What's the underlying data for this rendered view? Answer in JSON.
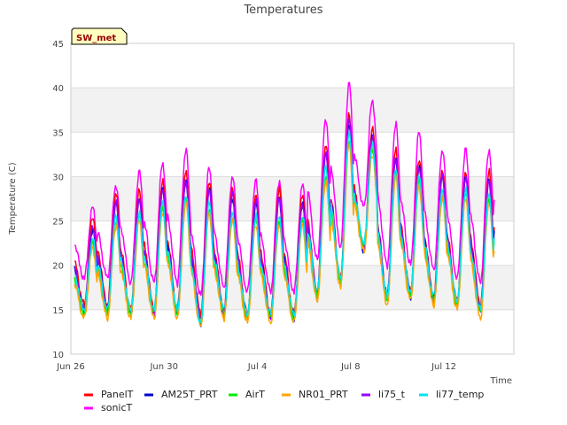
{
  "chart_data": {
    "type": "line",
    "title": "Temperatures",
    "xlabel": "Time",
    "ylabel": "Temperature (C)",
    "ylim": [
      10,
      45
    ],
    "xlim": [
      "2024-06-26",
      "2024-07-15"
    ],
    "x_ticks": [
      {
        "date": "2024-06-26",
        "label": "Jun 26"
      },
      {
        "date": "2024-06-30",
        "label": "Jun 30"
      },
      {
        "date": "2024-07-04",
        "label": "Jul 4"
      },
      {
        "date": "2024-07-08",
        "label": "Jul 8"
      },
      {
        "date": "2024-07-12",
        "label": "Jul 12"
      }
    ],
    "y_ticks": [
      10,
      15,
      20,
      25,
      30,
      35,
      40,
      45
    ],
    "grid": true,
    "annotation": "SW_met",
    "legend_position": "bottom",
    "days": [
      "2024-06-26",
      "2024-06-27",
      "2024-06-28",
      "2024-06-29",
      "2024-06-30",
      "2024-07-01",
      "2024-07-02",
      "2024-07-03",
      "2024-07-04",
      "2024-07-05",
      "2024-07-06",
      "2024-07-07",
      "2024-07-08",
      "2024-07-09",
      "2024-07-10",
      "2024-07-11",
      "2024-07-12",
      "2024-07-13",
      "2024-07-14"
    ],
    "series": [
      {
        "name": "PanelT",
        "color": "#ff0000",
        "daily_min": [
          15.5,
          15.5,
          15.0,
          15.0,
          15.0,
          14.5,
          15.0,
          14.5,
          14.5,
          14.5,
          17.0,
          18.5,
          22.0,
          16.5,
          17.0,
          16.5,
          16.0,
          15.5,
          18.0
        ],
        "daily_max": [
          25.5,
          28.0,
          28.5,
          29.5,
          30.5,
          29.5,
          28.5,
          28.0,
          28.5,
          28.0,
          33.5,
          37.0,
          35.5,
          33.0,
          32.0,
          30.5,
          30.5,
          30.5,
          30.5
        ]
      },
      {
        "name": "AM25T_PRT",
        "color": "#0000cc",
        "daily_min": [
          15.0,
          15.0,
          14.5,
          14.5,
          14.5,
          13.5,
          14.5,
          14.0,
          14.0,
          14.0,
          16.5,
          18.0,
          21.5,
          16.5,
          16.5,
          16.0,
          15.5,
          15.0,
          17.5
        ],
        "daily_max": [
          24.0,
          27.0,
          27.5,
          28.5,
          29.5,
          28.5,
          27.5,
          27.0,
          27.5,
          27.0,
          32.5,
          36.0,
          34.5,
          32.0,
          31.0,
          30.0,
          30.0,
          29.5,
          29.5
        ]
      },
      {
        "name": "AirT",
        "color": "#00ee00",
        "daily_min": [
          14.5,
          14.5,
          14.5,
          14.5,
          14.5,
          13.5,
          14.5,
          14.0,
          14.0,
          14.0,
          16.5,
          18.0,
          22.0,
          16.0,
          16.5,
          16.0,
          15.5,
          14.5,
          17.5
        ],
        "daily_max": [
          22.5,
          25.0,
          25.5,
          26.5,
          27.5,
          26.0,
          25.5,
          25.0,
          25.0,
          25.0,
          30.0,
          34.0,
          33.0,
          30.5,
          29.5,
          28.0,
          28.0,
          27.5,
          27.5
        ]
      },
      {
        "name": "NR01_PRT",
        "color": "#ffa500",
        "daily_min": [
          14.0,
          14.0,
          14.0,
          14.0,
          14.0,
          13.0,
          14.0,
          13.5,
          13.5,
          13.5,
          16.0,
          17.5,
          21.5,
          15.5,
          16.0,
          15.5,
          15.0,
          14.0,
          17.0
        ],
        "daily_max": [
          22.0,
          24.5,
          25.0,
          26.0,
          27.0,
          26.0,
          25.0,
          24.5,
          24.5,
          24.5,
          29.5,
          33.5,
          32.5,
          30.0,
          29.0,
          27.5,
          27.5,
          27.0,
          27.0
        ]
      },
      {
        "name": "li75_t",
        "color": "#9900ff",
        "daily_min": [
          15.0,
          15.0,
          14.5,
          14.5,
          14.5,
          14.0,
          14.5,
          14.0,
          14.0,
          14.0,
          17.0,
          18.0,
          22.0,
          16.5,
          17.0,
          16.0,
          15.5,
          15.0,
          17.5
        ],
        "daily_max": [
          24.5,
          27.0,
          27.5,
          28.5,
          29.5,
          28.5,
          28.0,
          27.5,
          27.5,
          27.0,
          32.5,
          36.5,
          34.5,
          32.0,
          31.0,
          30.0,
          30.0,
          29.5,
          29.5
        ]
      },
      {
        "name": "li77_temp",
        "color": "#00e5ee",
        "daily_min": [
          15.0,
          15.0,
          15.0,
          15.0,
          15.0,
          13.5,
          15.0,
          14.5,
          14.5,
          14.5,
          17.0,
          18.5,
          22.5,
          16.5,
          17.0,
          16.5,
          16.0,
          15.0,
          18.0
        ],
        "daily_max": [
          23.0,
          25.5,
          26.0,
          27.0,
          28.0,
          27.0,
          26.0,
          25.5,
          25.5,
          25.5,
          31.0,
          35.0,
          33.5,
          31.0,
          30.0,
          28.5,
          28.5,
          28.0,
          28.0
        ]
      },
      {
        "name": "sonicT",
        "color": "#ff00ff",
        "daily_min": [
          18.5,
          18.5,
          18.0,
          18.0,
          18.0,
          16.5,
          17.5,
          17.0,
          17.0,
          17.0,
          20.5,
          22.0,
          26.5,
          20.0,
          20.0,
          19.5,
          18.5,
          18.0,
          21.5
        ],
        "daily_max": [
          26.5,
          29.0,
          30.5,
          31.5,
          33.0,
          31.0,
          30.0,
          29.5,
          29.5,
          29.0,
          36.5,
          40.5,
          38.5,
          36.0,
          35.0,
          33.0,
          33.0,
          33.0,
          33.0
        ]
      }
    ]
  }
}
